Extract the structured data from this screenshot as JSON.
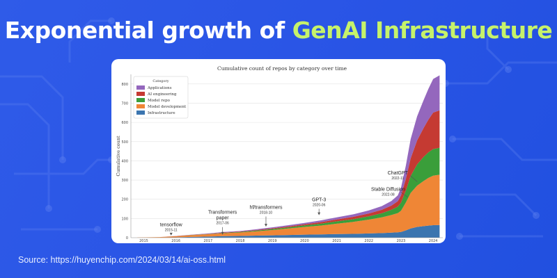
{
  "header": {
    "title_main": "Exponential growth of ",
    "title_accent": "GenAI Infrastructure",
    "accent_color": "#c6f26a"
  },
  "source": "Source: https://huyenchip.com/2024/03/14/ai-oss.html",
  "chart_data": {
    "type": "area",
    "stacked": true,
    "title": "Cumulative count of repos by category over time",
    "xlabel": "",
    "ylabel": "Cumulative count",
    "x": [
      2014.8,
      2015.5,
      2016.0,
      2016.5,
      2017.0,
      2017.5,
      2018.0,
      2018.5,
      2019.0,
      2019.5,
      2020.0,
      2020.5,
      2021.0,
      2021.5,
      2022.0,
      2022.4,
      2022.7,
      2022.9,
      2023.0,
      2023.15,
      2023.3,
      2023.5,
      2023.7,
      2023.85,
      2024.0,
      2024.2
    ],
    "xlim": [
      2014.6,
      2024.3
    ],
    "xticks": [
      "2015",
      "2016",
      "2017",
      "2018",
      "2019",
      "2020",
      "2021",
      "2022",
      "2023",
      "2024"
    ],
    "ylim": [
      0,
      850
    ],
    "yticks": [
      "0",
      "100",
      "200",
      "300",
      "400",
      "500",
      "600",
      "700",
      "800"
    ],
    "series": [
      {
        "name": "Infrastructure",
        "color": "#3b75af",
        "values": [
          0,
          0,
          2,
          4,
          6,
          8,
          9,
          11,
          12,
          14,
          16,
          17,
          19,
          20,
          22,
          24,
          26,
          28,
          30,
          38,
          48,
          56,
          60,
          63,
          65,
          66
        ]
      },
      {
        "name": "Model development",
        "color": "#ef8636",
        "values": [
          1,
          3,
          6,
          9,
          12,
          15,
          18,
          22,
          28,
          34,
          40,
          46,
          54,
          62,
          72,
          82,
          92,
          100,
          110,
          145,
          185,
          215,
          235,
          248,
          258,
          262
        ]
      },
      {
        "name": "Model repo",
        "color": "#3a9e3a",
        "values": [
          0,
          0,
          0,
          1,
          1,
          2,
          3,
          4,
          5,
          6,
          8,
          10,
          12,
          14,
          17,
          21,
          27,
          34,
          42,
          62,
          88,
          110,
          125,
          133,
          138,
          140
        ]
      },
      {
        "name": "AI engineering",
        "color": "#c53a32",
        "values": [
          0,
          0,
          0,
          1,
          1,
          2,
          2,
          3,
          4,
          5,
          6,
          8,
          10,
          12,
          15,
          18,
          22,
          28,
          38,
          60,
          92,
          125,
          150,
          170,
          190,
          195
        ]
      },
      {
        "name": "Applications",
        "color": "#9467bd",
        "values": [
          0,
          0,
          1,
          1,
          2,
          3,
          3,
          4,
          5,
          6,
          7,
          9,
          11,
          13,
          16,
          19,
          24,
          30,
          40,
          70,
          100,
          125,
          145,
          160,
          175,
          182
        ]
      }
    ],
    "legend": {
      "title": "Category",
      "placement": "top-left",
      "order": [
        "Applications",
        "AI engineering",
        "Model repo",
        "Model development",
        "Infrastructure"
      ]
    },
    "grid": {
      "y": true,
      "x": false
    },
    "annotations": [
      {
        "label": "tensorflow",
        "date": "2015-11",
        "x": 2015.85,
        "y_arrow": 4,
        "y_text": 60
      },
      {
        "label": "Transformers\npaper",
        "date": "2017-06",
        "x": 2017.45,
        "y_arrow": 8,
        "y_text": 95
      },
      {
        "label": "hf/transformers",
        "date": "2018-10",
        "x": 2018.8,
        "y_arrow": 50,
        "y_text": 150
      },
      {
        "label": "GPT-3",
        "date": "2020-06",
        "x": 2020.45,
        "y_arrow": 110,
        "y_text": 190
      },
      {
        "label": "Stable Diffusion",
        "date": "2022-08",
        "x": 2022.6,
        "y_arrow": 240,
        "y_text": 245
      },
      {
        "label": "ChatGPT",
        "date": "2022-11",
        "x": 2022.9,
        "y_arrow": 320,
        "y_text": 330
      }
    ]
  }
}
